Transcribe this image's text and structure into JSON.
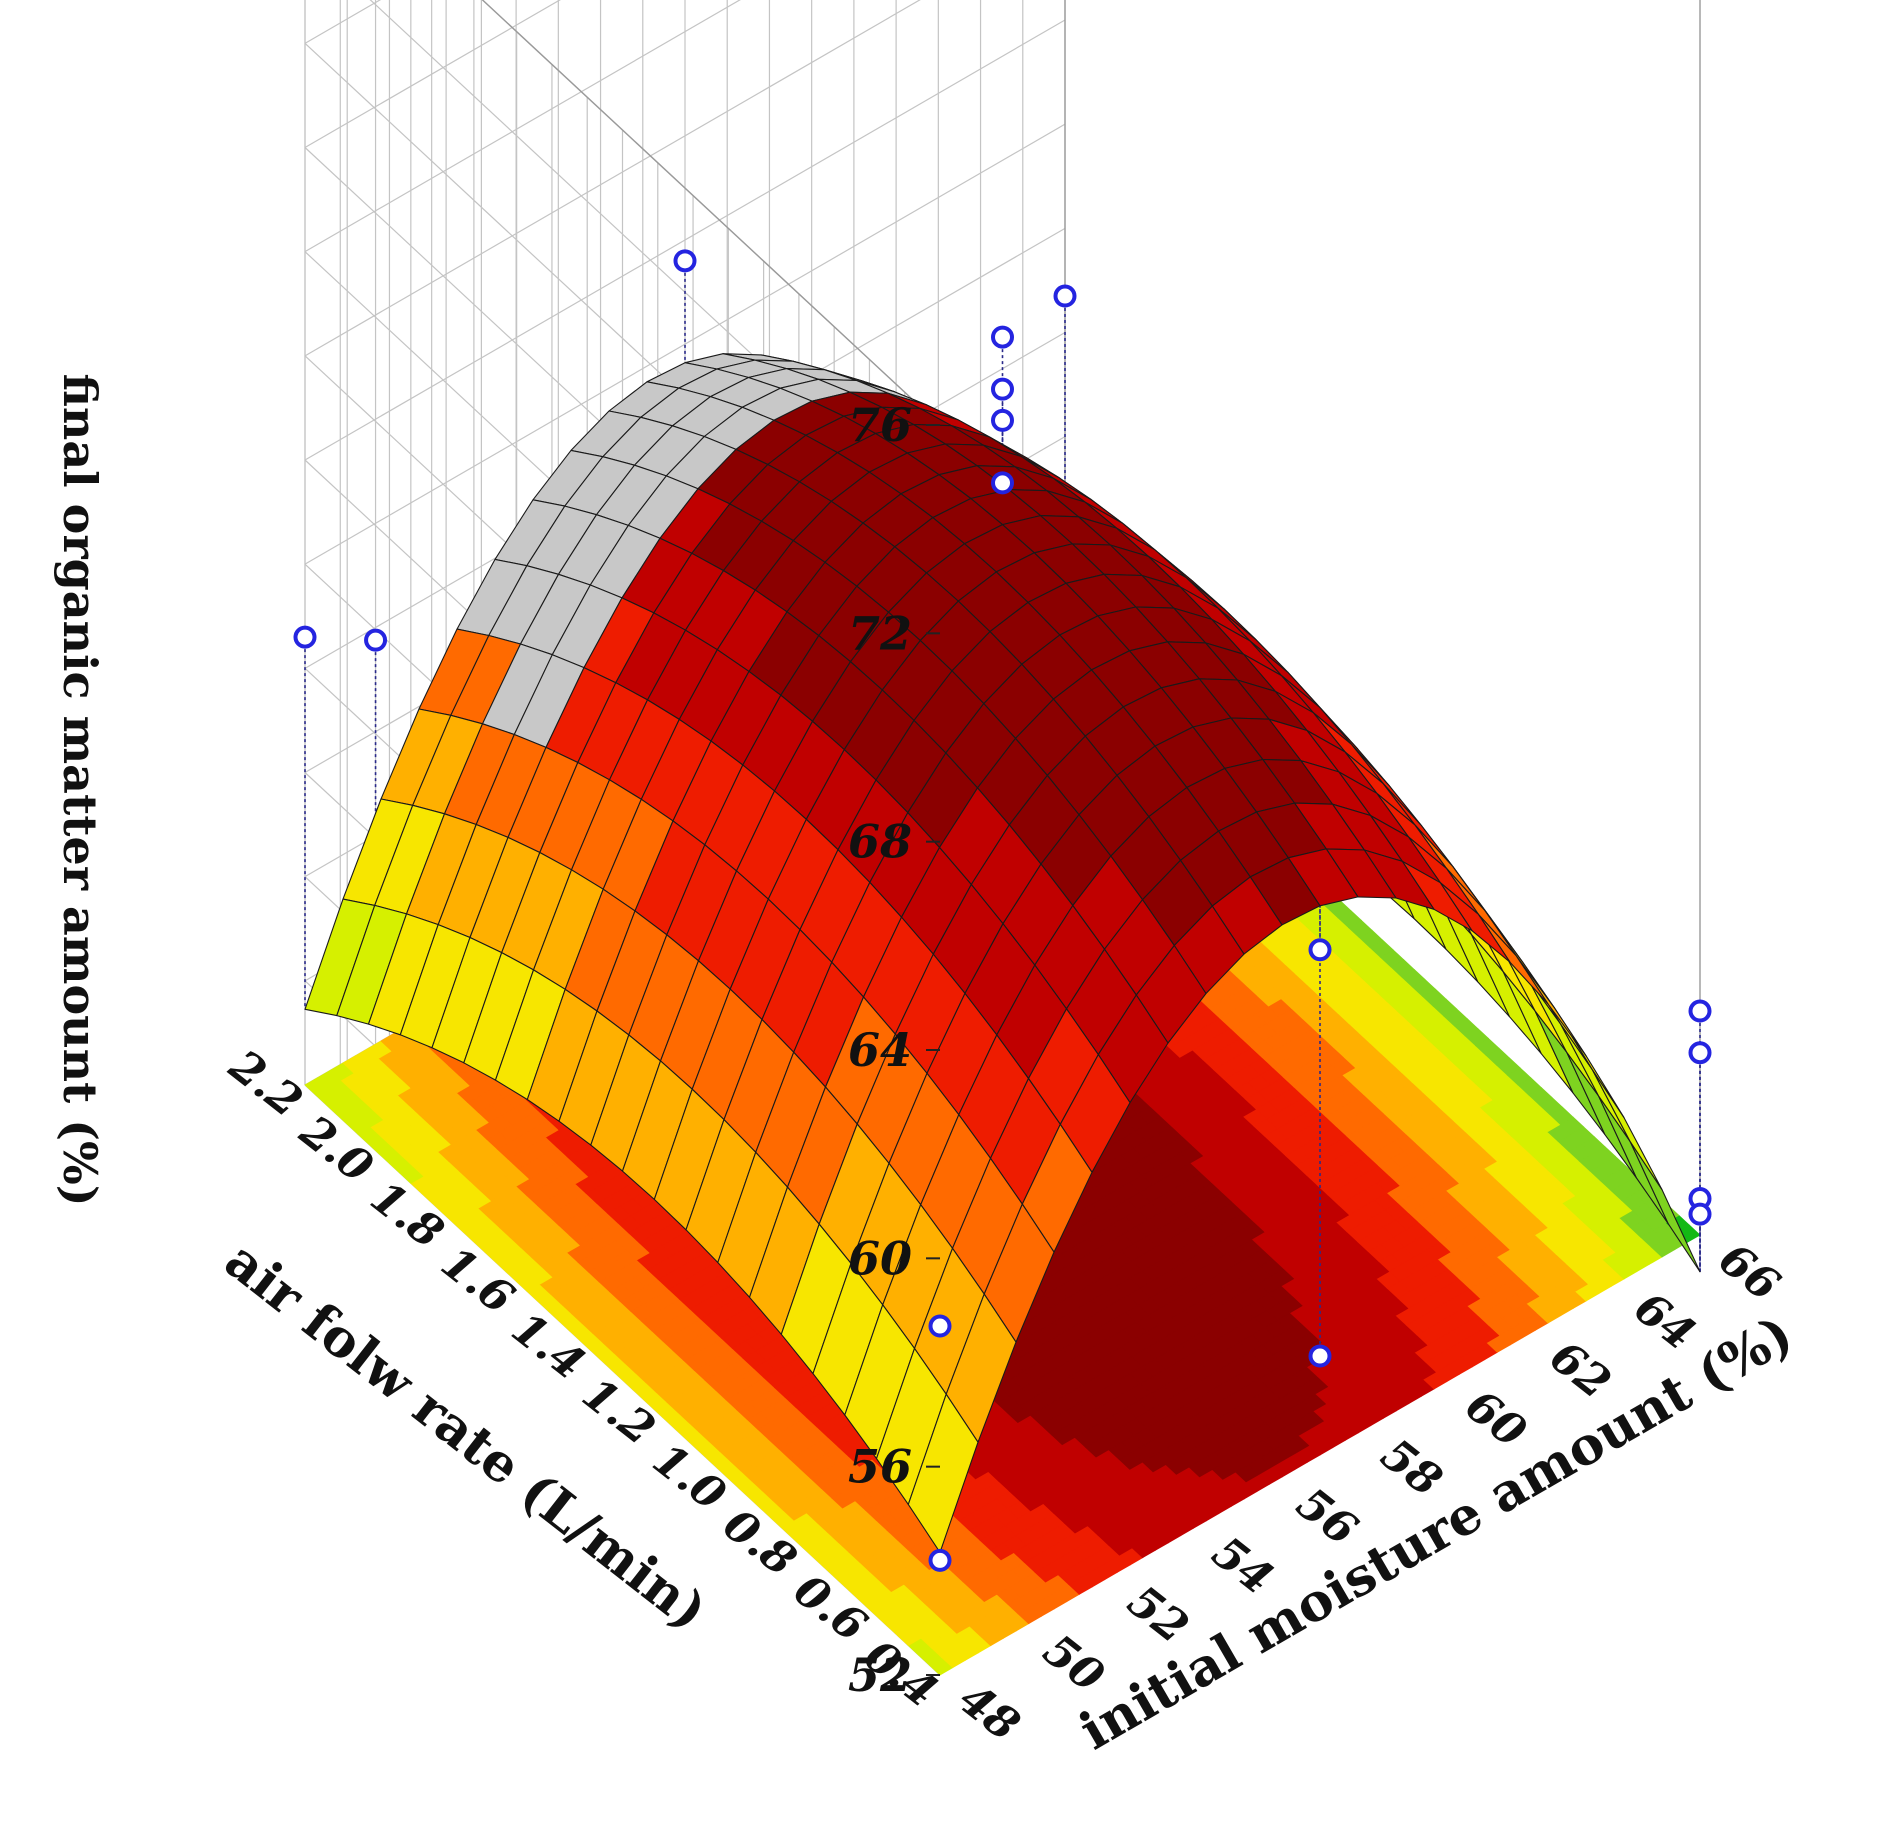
{
  "chart_data": {
    "type": "surface3d",
    "title": "",
    "xlabel": "initial moisture amount (%)",
    "ylabel": "air folw rate (L/min)",
    "zlabel": "final organic matter amount (%)",
    "xlim": [
      48,
      66
    ],
    "ylim": [
      0.4,
      2.2
    ],
    "zlim": [
      52,
      76
    ],
    "x_ticks": [
      "48",
      "50",
      "52",
      "54",
      "56",
      "58",
      "60",
      "62",
      "64",
      "66"
    ],
    "y_ticks": [
      "0.4",
      "0.6",
      "0.8",
      "1.0",
      "1.2",
      "1.4",
      "1.6",
      "1.8",
      "2.0",
      "2.2"
    ],
    "z_ticks": [
      "52",
      "56",
      "60",
      "64",
      "68",
      "72",
      "76"
    ],
    "grid": true,
    "legend": "none",
    "colormap": [
      "#14b914",
      "#7ed320",
      "#d6f000",
      "#f7e600",
      "#ffb000",
      "#ff6a00",
      "#ee1c00",
      "#c00000",
      "#8b0000"
    ],
    "surface_above_colormap_color": "#c8c8c8",
    "surface_model": {
      "form": "quadratic",
      "x_center": 57,
      "y_center": 1.3,
      "intercept": 64.2,
      "x_linear": -0.17,
      "y_linear": -0.5,
      "x_quadratic": -0.12,
      "y_quadratic": -2.6
    },
    "points": [
      {
        "x": 57,
        "y": 2.2,
        "z": 63.6
      },
      {
        "x": 48,
        "y": 2.2,
        "z": 60.6
      },
      {
        "x": 48,
        "y": 2.0,
        "z": 61.8
      },
      {
        "x": 66,
        "y": 2.2,
        "z": 58.7
      },
      {
        "x": 57,
        "y": 1.3,
        "z": 67.8
      },
      {
        "x": 57,
        "y": 1.3,
        "z": 66.8
      },
      {
        "x": 57,
        "y": 1.3,
        "z": 66.2
      },
      {
        "x": 57,
        "y": 1.3,
        "z": 65.0
      },
      {
        "x": 48,
        "y": 0.4,
        "z": 58.7
      },
      {
        "x": 48,
        "y": 0.4,
        "z": 54.2
      },
      {
        "x": 57,
        "y": 0.4,
        "z": 61.7
      },
      {
        "x": 57,
        "y": 0.4,
        "z": 53.9
      },
      {
        "x": 66,
        "y": 0.4,
        "z": 56.3
      },
      {
        "x": 66,
        "y": 0.4,
        "z": 55.5
      },
      {
        "x": 66,
        "y": 0.4,
        "z": 52.7
      },
      {
        "x": 66,
        "y": 0.4,
        "z": 52.4
      }
    ]
  }
}
